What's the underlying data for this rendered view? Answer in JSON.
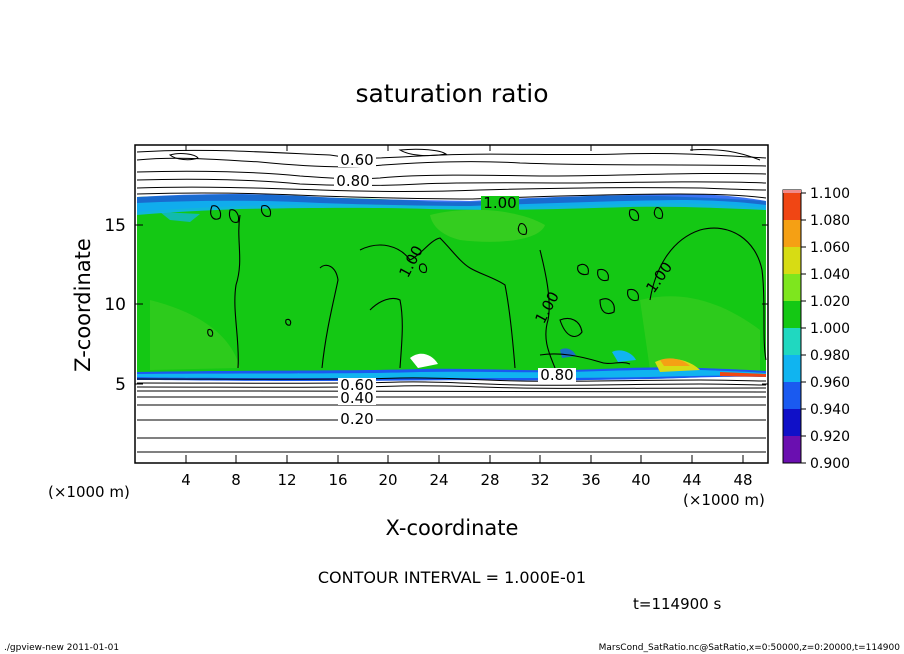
{
  "chart_data": {
    "type": "heatmap",
    "title": "saturation ratio",
    "xlabel": "X-coordinate",
    "ylabel": "Z-coordinate",
    "x_unit": "(×1000 m)",
    "y_unit": "(×1000 m)",
    "xlim": [
      0,
      50
    ],
    "ylim": [
      0,
      20
    ],
    "x_ticks": [
      "4",
      "8",
      "12",
      "16",
      "20",
      "24",
      "28",
      "32",
      "36",
      "40",
      "44",
      "48"
    ],
    "y_ticks": [
      "5",
      "10",
      "15"
    ],
    "colorbar": {
      "levels": [
        "0.900",
        "0.920",
        "0.940",
        "0.960",
        "0.980",
        "1.000",
        "1.020",
        "1.040",
        "1.060",
        "1.080",
        "1.100"
      ],
      "colors": [
        "#6a0fb0",
        "#1010c8",
        "#1a5af0",
        "#10b4f0",
        "#20d8c0",
        "#14c814",
        "#7ee61e",
        "#d7dc14",
        "#f5a014",
        "#f04614",
        "#f08c8c"
      ]
    },
    "contour_labels": [
      "0.60",
      "0.80",
      "1.00",
      "1.00",
      "1.00",
      "1.00",
      "0.80",
      "0.60",
      "0.40",
      "0.20"
    ],
    "contour_interval": "CONTOUR INTERVAL = 1.000E-01",
    "time_label": "t=114900 s"
  },
  "footer": {
    "left": "./gpview-new   2011-01-01",
    "right": "MarsCond_SatRatio.nc@SatRatio,x=0:50000,z=0:20000,t=114900"
  }
}
